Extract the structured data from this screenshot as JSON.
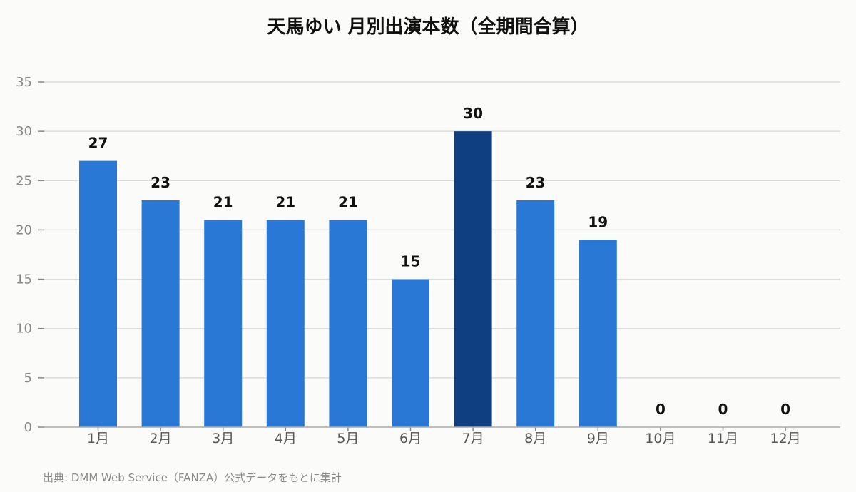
{
  "chart_data": {
    "type": "bar",
    "title": "天馬ゆい 月別出演本数（全期間合算）",
    "categories": [
      "1月",
      "2月",
      "3月",
      "4月",
      "5月",
      "6月",
      "7月",
      "8月",
      "9月",
      "10月",
      "11月",
      "12月"
    ],
    "values": [
      27,
      23,
      21,
      21,
      21,
      15,
      30,
      23,
      19,
      0,
      0,
      0
    ],
    "ylim": [
      0,
      35
    ],
    "yticks": [
      0,
      5,
      10,
      15,
      20,
      25,
      30,
      35
    ],
    "grid": true,
    "highlight_index": 6,
    "colors": {
      "bar": "#2a78d6",
      "highlight": "#0f3f80"
    },
    "xlabel": "",
    "ylabel": ""
  },
  "source": "出典: DMM Web Service（FANZA）公式データをもとに集計"
}
